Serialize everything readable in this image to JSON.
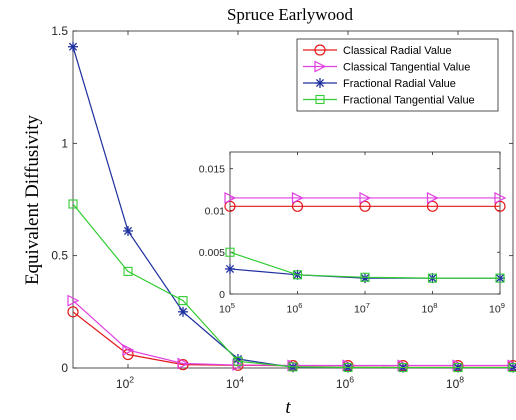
{
  "chart_data": [
    {
      "type": "line",
      "title": "Spruce Earlywood",
      "xlabel": "t",
      "ylabel": "Equivalent Diffusivity",
      "xscale": "log",
      "xlim": [
        10,
        1000000000
      ],
      "ylim": [
        0,
        1.5
      ],
      "x_ticks": [
        {
          "value": 100,
          "exp": "2"
        },
        {
          "value": 10000,
          "exp": "4"
        },
        {
          "value": 1000000,
          "exp": "6"
        },
        {
          "value": 100000000,
          "exp": "8"
        }
      ],
      "y_ticks": [
        {
          "value": 0,
          "label": "0"
        },
        {
          "value": 0.5,
          "label": "0.5"
        },
        {
          "value": 1,
          "label": "1"
        },
        {
          "value": 1.5,
          "label": "1.5"
        }
      ],
      "tick_base": "10",
      "x": [
        10,
        100,
        1000,
        10000,
        100000,
        1000000,
        10000000,
        100000000,
        1000000000
      ],
      "legend_position": "top-right",
      "series": [
        {
          "name": "Classical Radial Value",
          "color": "#e31a1c",
          "marker": "circle",
          "values": [
            0.25,
            0.06,
            0.015,
            0.012,
            0.0105,
            0.0105,
            0.0105,
            0.0105,
            0.0105
          ]
        },
        {
          "name": "Classical Tangential Value",
          "color": "#e040e0",
          "marker": "triangle-right",
          "values": [
            0.3,
            0.08,
            0.02,
            0.013,
            0.0115,
            0.0115,
            0.0115,
            0.0115,
            0.0115
          ]
        },
        {
          "name": "Fractional Radial Value",
          "color": "#1f2f9f",
          "marker": "asterisk",
          "values": [
            1.43,
            0.61,
            0.25,
            0.04,
            0.003,
            0.0023,
            0.0019,
            0.0019,
            0.0019
          ]
        },
        {
          "name": "Fractional Tangential Value",
          "color": "#33cc33",
          "marker": "square",
          "values": [
            0.73,
            0.43,
            0.3,
            0.03,
            0.005,
            0.0023,
            0.002,
            0.0019,
            0.0019
          ]
        }
      ]
    },
    {
      "type": "line",
      "title": "",
      "xlabel": "",
      "ylabel": "",
      "xscale": "log",
      "xlim": [
        100000,
        1000000000
      ],
      "ylim": [
        0,
        0.017
      ],
      "x_ticks": [
        {
          "value": 100000,
          "exp": "5"
        },
        {
          "value": 1000000,
          "exp": "6"
        },
        {
          "value": 10000000,
          "exp": "7"
        },
        {
          "value": 100000000,
          "exp": "8"
        },
        {
          "value": 1000000000,
          "exp": "9"
        }
      ],
      "y_ticks": [
        {
          "value": 0,
          "label": "0"
        },
        {
          "value": 0.005,
          "label": "0.005"
        },
        {
          "value": 0.01,
          "label": "0.01"
        },
        {
          "value": 0.015,
          "label": "0.015"
        }
      ],
      "tick_base": "10",
      "x": [
        100000,
        1000000,
        10000000,
        100000000,
        1000000000
      ],
      "series": [
        {
          "color": "#e31a1c",
          "marker": "circle",
          "values": [
            0.0105,
            0.0105,
            0.0105,
            0.0105,
            0.0105
          ]
        },
        {
          "color": "#e040e0",
          "marker": "triangle-right",
          "values": [
            0.0115,
            0.0115,
            0.0115,
            0.0115,
            0.0115
          ]
        },
        {
          "color": "#1f2f9f",
          "marker": "asterisk",
          "values": [
            0.003,
            0.0023,
            0.0019,
            0.0019,
            0.0019
          ]
        },
        {
          "color": "#33cc33",
          "marker": "square",
          "values": [
            0.005,
            0.0023,
            0.002,
            0.0019,
            0.0019
          ]
        }
      ]
    }
  ]
}
